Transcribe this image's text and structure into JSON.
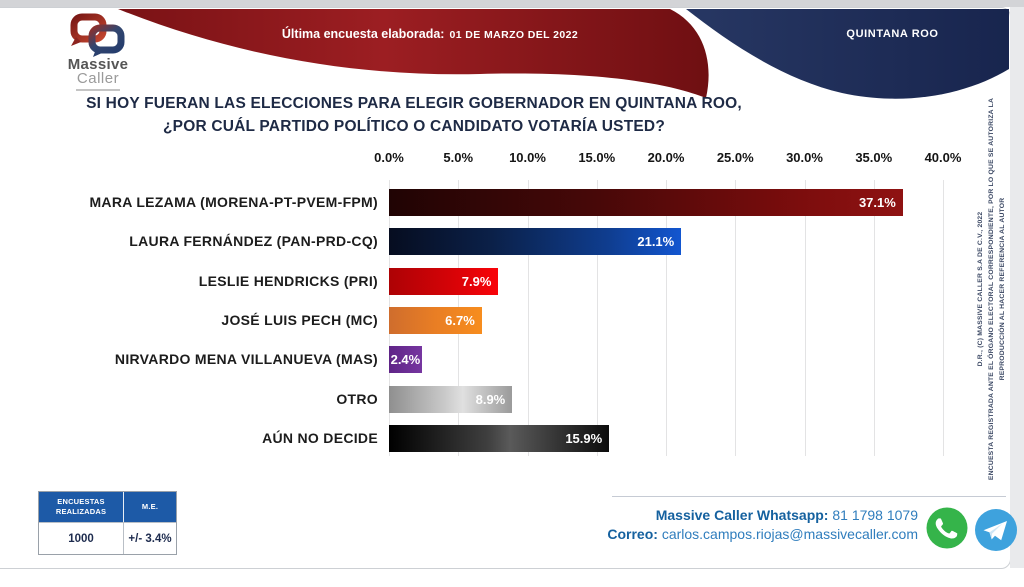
{
  "logo": {
    "name_top": "Massive",
    "name_bottom": "Caller"
  },
  "header": {
    "banner_label": "Última encuesta elaborada:",
    "banner_date": "01 DE MARZO DEL 2022",
    "region": "QUINTANA ROO"
  },
  "title": {
    "line1": "SI HOY FUERAN LAS ELECCIONES PARA ELEGIR GOBERNADOR EN QUINTANA ROO,",
    "line2": "¿POR CUÁL PARTIDO POLÍTICO O CANDIDATO VOTARÍA USTED?"
  },
  "chart_data": {
    "type": "bar",
    "orientation": "horizontal",
    "categories": [
      "MARA LEZAMA (MORENA-PT-PVEM-FPM)",
      "LAURA FERNÁNDEZ (PAN-PRD-CQ)",
      "LESLIE HENDRICKS (PRI)",
      "JOSÉ LUIS PECH (MC)",
      "NIRVARDO MENA VILLANUEVA (MAS)",
      "OTRO",
      "AÚN NO DECIDE"
    ],
    "values": [
      37.1,
      21.1,
      7.9,
      6.7,
      2.4,
      8.9,
      15.9
    ],
    "value_labels": [
      "37.1%",
      "21.1%",
      "7.9%",
      "6.7%",
      "2.4%",
      "8.9%",
      "15.9%"
    ],
    "x_ticks": [
      "0.0%",
      "5.0%",
      "10.0%",
      "15.0%",
      "20.0%",
      "25.0%",
      "30.0%",
      "35.0%",
      "40.0%"
    ],
    "xlim": [
      0,
      40
    ],
    "grid": true,
    "legend": "none",
    "bar_gradients": [
      [
        "#200404 0%",
        "#470808 40%",
        "#7c0d0d 80%",
        "#8f1212 100%"
      ],
      [
        "#060d20 0%",
        "#0b2048 35%",
        "#0f3d8f 75%",
        "#1256d0 100%"
      ],
      [
        "#ad0205 0%",
        "#d40307 55%",
        "#f90309 100%"
      ],
      [
        "#cf6d2d 0%",
        "#e97e24 50%",
        "#f78d1e 100%"
      ],
      [
        "#5f2487 0%",
        "#6d2f96 60%",
        "#7636a0 100%"
      ],
      [
        "#8f8f8f 0%",
        "#c9c9c9 45%",
        "#e0e0e0 60%",
        "#9a9a9a 100%"
      ],
      [
        "#000000 0%",
        "#3f3f3f 45%",
        "#5a5a5a 55%",
        "#0c0c0c 100%"
      ]
    ]
  },
  "stats_table": {
    "headers": [
      "ENCUESTAS REALIZADAS",
      "M.E."
    ],
    "row": [
      "1000",
      "+/- 3.4%"
    ]
  },
  "contact": {
    "whatsapp_label": "Massive Caller Whatsapp:",
    "whatsapp_number": "81 1798 1079",
    "email_label": "Correo:",
    "email_value": "carlos.campos.riojas@massivecaller.com"
  },
  "icons": {
    "whatsapp": "whatsapp-icon",
    "telegram": "telegram-icon"
  },
  "copyright": {
    "line1": "D.R., (C) MASSIVE CALLER S.A DE C.V., 2022",
    "line2": "ENCUESTA REGISTRADA ANTE EL ÓRGANO ELECTORAL CORRESPONDIENTE, POR LO QUE SE AUTORIZA LA",
    "line3": "REPRODUCCIÓN AL HACER REFERENCIA AL AUTOR"
  },
  "colors": {
    "banner_red": "#8f191c",
    "banner_navy": "#1d2b55",
    "title_navy": "#1e2a45",
    "table_header_blue": "#1d5aa7",
    "contact_blue": "#1a6db3",
    "whatsapp_green": "#35b44a",
    "telegram_blue": "#3ea2dd",
    "gridline": "#e3e3e4"
  }
}
